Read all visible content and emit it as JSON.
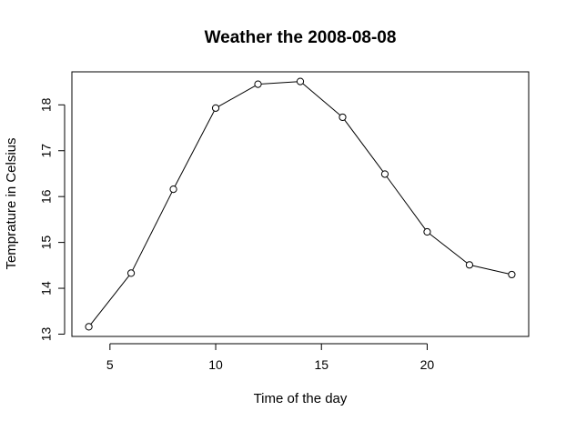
{
  "chart_data": {
    "type": "line",
    "title": "Weather the 2008-08-08",
    "xlabel": "Time of the day",
    "ylabel": "Temprature in Celsius",
    "x": [
      4,
      6,
      8,
      10,
      12,
      14,
      16,
      18,
      20,
      22,
      24
    ],
    "series": [
      {
        "values": [
          13.16,
          14.33,
          16.16,
          17.93,
          18.45,
          18.51,
          17.73,
          16.49,
          15.23,
          14.51,
          14.3
        ]
      }
    ],
    "xlim": [
      3.2,
      24.8
    ],
    "ylim": [
      12.95,
      18.72
    ],
    "xticks": [
      5,
      10,
      15,
      20
    ],
    "yticks": [
      13,
      14,
      15,
      16,
      17,
      18
    ],
    "xtick_labels": [
      "5",
      "10",
      "15",
      "20"
    ],
    "ytick_labels": [
      "13",
      "14",
      "15",
      "16",
      "17",
      "18"
    ],
    "grid": false,
    "markers": "open-circle",
    "line_color": "#000000"
  }
}
